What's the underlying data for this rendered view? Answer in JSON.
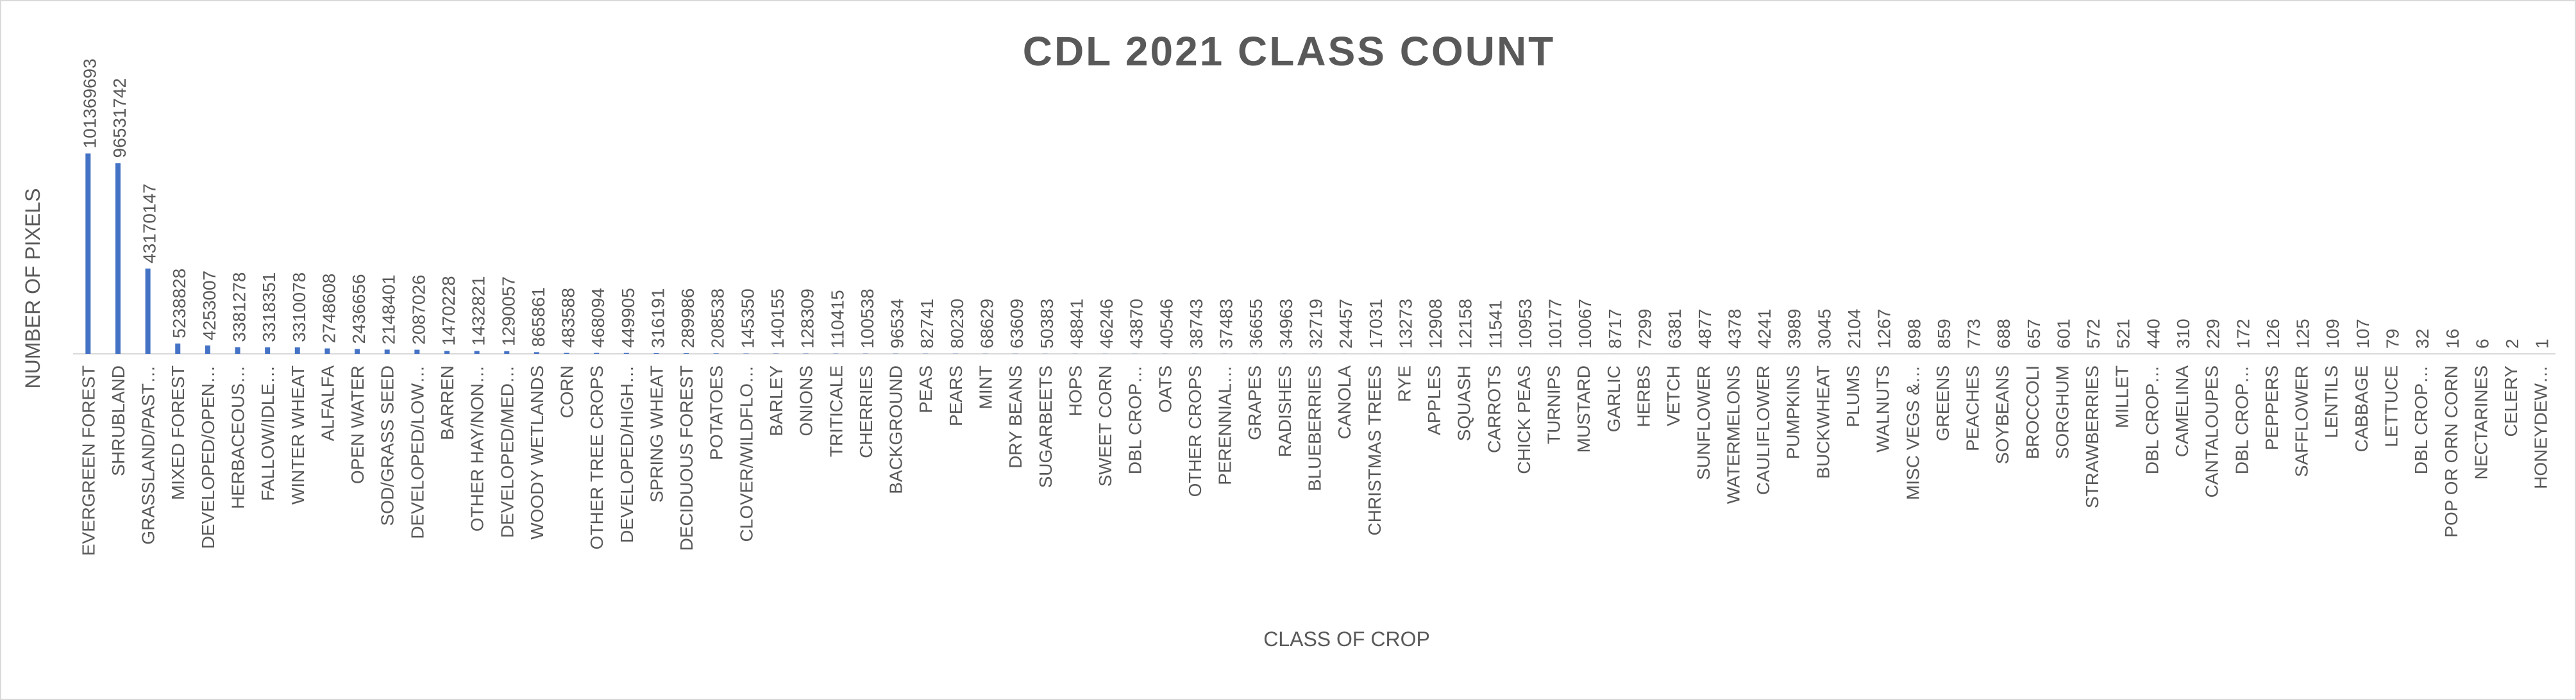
{
  "chart_data": {
    "type": "bar",
    "title": "CDL 2021 CLASS COUNT",
    "x_label": "CLASS OF CROP",
    "y_label": "NUMBER OF PIXELS",
    "color": "#4472c4",
    "ylim": [
      0,
      120000000
    ],
    "categories": [
      "EVERGREEN FOREST",
      "SHRUBLAND",
      "GRASSLAND/PAST…",
      "MIXED FOREST",
      "DEVELOPED/OPEN…",
      "HERBACEOUS…",
      "FALLOW/IDLE…",
      "WINTER WHEAT",
      "ALFALFA",
      "OPEN WATER",
      "SOD/GRASS SEED",
      "DEVELOPED/LOW…",
      "BARREN",
      "OTHER HAY/NON…",
      "DEVELOPED/MED…",
      "WOODY WETLANDS",
      "CORN",
      "OTHER TREE CROPS",
      "DEVELOPED/HIGH…",
      "SPRING WHEAT",
      "DECIDUOUS FOREST",
      "POTATOES",
      "CLOVER/WILDFLO…",
      "BARLEY",
      "ONIONS",
      "TRITICALE",
      "CHERRIES",
      "BACKGROUND",
      "PEAS",
      "PEARS",
      "MINT",
      "DRY BEANS",
      "SUGARBEETS",
      "HOPS",
      "SWEET CORN",
      "DBL CROP…",
      "OATS",
      "OTHER CROPS",
      "PERENNIAL…",
      "GRAPES",
      "RADISHES",
      "BLUEBERRIES",
      "CANOLA",
      "CHRISTMAS TREES",
      "RYE",
      "APPLES",
      "SQUASH",
      "CARROTS",
      "CHICK PEAS",
      "TURNIPS",
      "MUSTARD",
      "GARLIC",
      "HERBS",
      "VETCH",
      "SUNFLOWER",
      "WATERMELONS",
      "CAULIFLOWER",
      "PUMPKINS",
      "BUCKWHEAT",
      "PLUMS",
      "WALNUTS",
      "MISC VEGS &…",
      "GREENS",
      "PEACHES",
      "SOYBEANS",
      "BROCCOLI",
      "SORGHUM",
      "STRAWBERRIES",
      "MILLET",
      "DBL CROP…",
      "CAMELINA",
      "CANTALOUPES",
      "DBL CROP…",
      "PEPPERS",
      "SAFFLOWER",
      "LENTILS",
      "CABBAGE",
      "LETTUCE",
      "DBL CROP…",
      "POP OR ORN CORN",
      "NECTARINES",
      "CELERY",
      "HONEYDEW…"
    ],
    "values": [
      101369693,
      96531742,
      43170147,
      5238828,
      4253007,
      3381278,
      3318351,
      3310078,
      2748608,
      2436656,
      2148401,
      2087026,
      1470228,
      1432821,
      1290057,
      865861,
      483588,
      468094,
      449905,
      316191,
      289986,
      208538,
      145350,
      140155,
      128309,
      110415,
      100538,
      96534,
      82741,
      80230,
      68629,
      63609,
      50383,
      48841,
      46246,
      43870,
      40546,
      38743,
      37483,
      36655,
      34963,
      32719,
      24457,
      17031,
      13273,
      12908,
      12158,
      11541,
      10953,
      10177,
      10067,
      8717,
      7299,
      6381,
      4877,
      4378,
      4241,
      3989,
      3045,
      2104,
      1267,
      898,
      859,
      773,
      688,
      657,
      601,
      572,
      521,
      440,
      310,
      229,
      172,
      126,
      125,
      109,
      107,
      79,
      32,
      16,
      6,
      2,
      1
    ]
  }
}
